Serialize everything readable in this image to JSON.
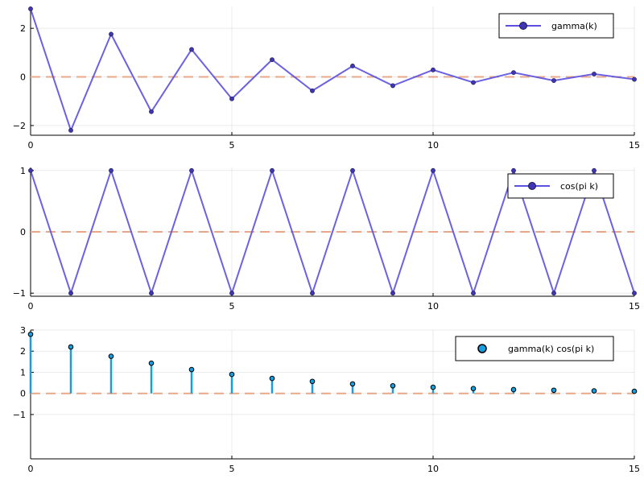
{
  "chart_data": [
    {
      "type": "line",
      "x": [
        0,
        1,
        2,
        3,
        4,
        5,
        6,
        7,
        8,
        9,
        10,
        11,
        12,
        13,
        14,
        15
      ],
      "series": [
        {
          "name": "gamma(k)",
          "values": [
            2.8,
            -2.2,
            1.76,
            -1.43,
            1.13,
            -0.9,
            0.71,
            -0.57,
            0.45,
            -0.36,
            0.29,
            -0.23,
            0.18,
            -0.15,
            0.12,
            -0.1
          ],
          "color": "#5b50e0",
          "markers": true
        }
      ],
      "reference_line": {
        "y": 0,
        "style": "dashed",
        "color": "#e8a888"
      },
      "xlim": [
        0,
        15
      ],
      "ylim": [
        -2.4,
        2.9
      ],
      "xticks": [
        0,
        5,
        10,
        15
      ],
      "yticks": [
        -2,
        0,
        2
      ],
      "ytick_labels": [
        "−2",
        "0",
        "2"
      ],
      "grid": true,
      "legend": "top-right"
    },
    {
      "type": "line",
      "x": [
        0,
        1,
        2,
        3,
        4,
        5,
        6,
        7,
        8,
        9,
        10,
        11,
        12,
        13,
        14,
        15
      ],
      "series": [
        {
          "name": "cos(pi k)",
          "values": [
            1,
            -1,
            1,
            -1,
            1,
            -1,
            1,
            -1,
            1,
            -1,
            1,
            -1,
            1,
            -1,
            1,
            -1
          ],
          "color": "#5b50e0",
          "markers": true
        }
      ],
      "reference_line": {
        "y": 0,
        "style": "dashed",
        "color": "#e8a888"
      },
      "xlim": [
        0,
        15
      ],
      "ylim": [
        -1.05,
        1.05
      ],
      "xticks": [
        0,
        5,
        10,
        15
      ],
      "yticks": [
        -1,
        0,
        1
      ],
      "ytick_labels": [
        "−1",
        "0",
        "1"
      ],
      "grid": true,
      "legend": "top-right"
    },
    {
      "type": "stem",
      "x": [
        0,
        1,
        2,
        3,
        4,
        5,
        6,
        7,
        8,
        9,
        10,
        11,
        12,
        13,
        14,
        15
      ],
      "series": [
        {
          "name": "gamma(k) cos(pi k)",
          "values": [
            2.8,
            2.2,
            1.76,
            1.43,
            1.13,
            0.9,
            0.71,
            0.57,
            0.45,
            0.36,
            0.29,
            0.23,
            0.18,
            0.15,
            0.12,
            0.1
          ],
          "color": "#179ee0",
          "markers": true
        }
      ],
      "reference_line": {
        "y": 0,
        "style": "dashed",
        "color": "#e8a888"
      },
      "xlim": [
        0,
        15
      ],
      "ylim": [
        -3.1,
        3.0
      ],
      "xticks": [
        0,
        5,
        10,
        15
      ],
      "yticks": [
        -1,
        0,
        1,
        2,
        3
      ],
      "ytick_labels": [
        "−1",
        "0",
        "1",
        "2",
        "3"
      ],
      "grid": true,
      "legend": "top-right"
    }
  ]
}
